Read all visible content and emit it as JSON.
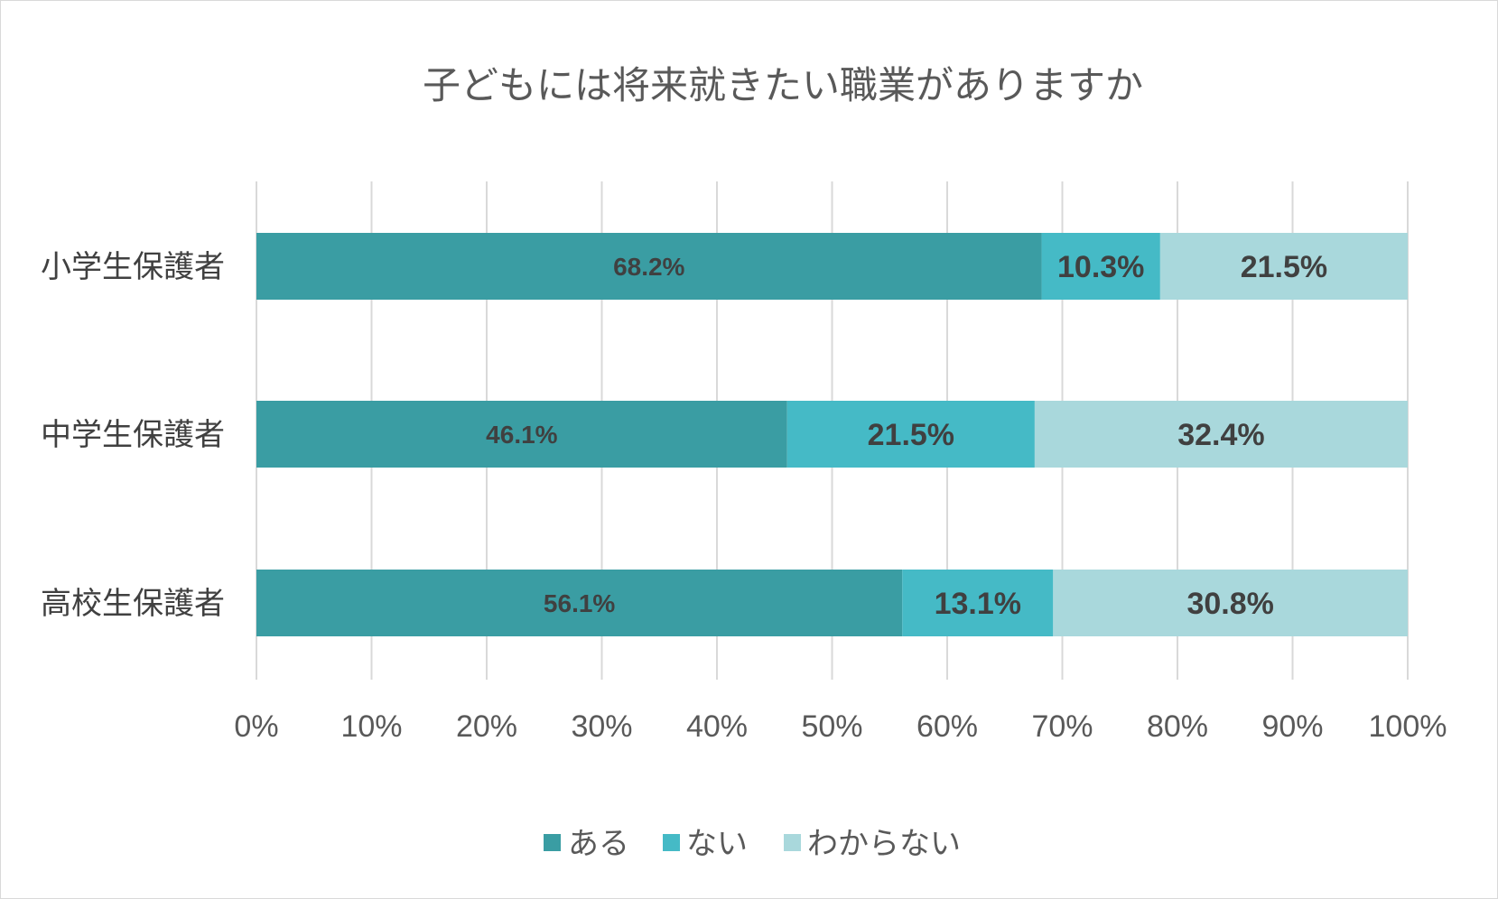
{
  "chart_data": {
    "type": "bar",
    "orientation": "horizontal",
    "stacked": true,
    "title": "子どもには将来就きたい職業がありますか",
    "categories": [
      "小学生保護者",
      "中学生保護者",
      "高校生保護者"
    ],
    "series": [
      {
        "name": "ある",
        "color": "#3a9da3",
        "values": [
          68.2,
          46.1,
          56.1
        ],
        "labels": [
          "68.2%",
          "46.1%",
          "56.1%"
        ]
      },
      {
        "name": "ない",
        "color": "#45bac6",
        "values": [
          10.3,
          21.5,
          13.1
        ],
        "labels": [
          "10.3%",
          "21.5%",
          "13.1%"
        ]
      },
      {
        "name": "わからない",
        "color": "#a9d8dc",
        "values": [
          21.5,
          32.4,
          30.8
        ],
        "labels": [
          "21.5%",
          "32.4%",
          "30.8%"
        ]
      }
    ],
    "x_ticks": [
      "0%",
      "10%",
      "20%",
      "30%",
      "40%",
      "50%",
      "60%",
      "70%",
      "80%",
      "90%",
      "100%"
    ],
    "xlim": [
      0,
      100
    ],
    "grid": true,
    "legend_position": "bottom"
  }
}
